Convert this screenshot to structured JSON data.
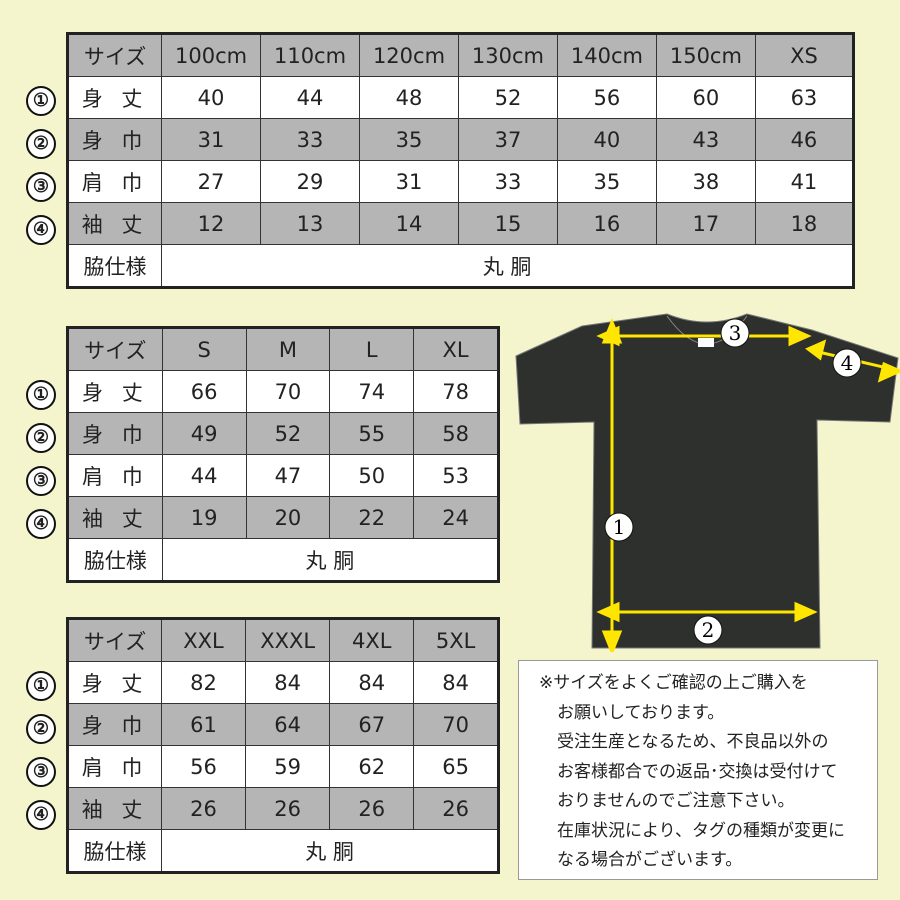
{
  "colors": {
    "background": "#f5f5cd",
    "header_gray": "#b5b5b5",
    "arrow": "#ffe600",
    "shirt": "#2e302e"
  },
  "markers": [
    "①",
    "②",
    "③",
    "④"
  ],
  "tables": [
    {
      "header": [
        "サイズ",
        "100cm",
        "110cm",
        "120cm",
        "130cm",
        "140cm",
        "150cm",
        "XS"
      ],
      "rows": [
        {
          "label": "身 丈",
          "values": [
            "40",
            "44",
            "48",
            "52",
            "56",
            "60",
            "63"
          ]
        },
        {
          "label": "身 巾",
          "values": [
            "31",
            "33",
            "35",
            "37",
            "40",
            "43",
            "46"
          ]
        },
        {
          "label": "肩 巾",
          "values": [
            "27",
            "29",
            "31",
            "33",
            "35",
            "38",
            "41"
          ]
        },
        {
          "label": "袖 丈",
          "values": [
            "12",
            "13",
            "14",
            "15",
            "16",
            "17",
            "18"
          ]
        }
      ],
      "side_label": "脇仕様",
      "side_value": "丸 胴"
    },
    {
      "header": [
        "サイズ",
        "S",
        "M",
        "L",
        "XL"
      ],
      "rows": [
        {
          "label": "身 丈",
          "values": [
            "66",
            "70",
            "74",
            "78"
          ]
        },
        {
          "label": "身 巾",
          "values": [
            "49",
            "52",
            "55",
            "58"
          ]
        },
        {
          "label": "肩 巾",
          "values": [
            "44",
            "47",
            "50",
            "53"
          ]
        },
        {
          "label": "袖 丈",
          "values": [
            "19",
            "20",
            "22",
            "24"
          ]
        }
      ],
      "side_label": "脇仕様",
      "side_value": "丸 胴"
    },
    {
      "header": [
        "サイズ",
        "XXL",
        "XXXL",
        "4XL",
        "5XL"
      ],
      "rows": [
        {
          "label": "身 丈",
          "values": [
            "82",
            "84",
            "84",
            "84"
          ]
        },
        {
          "label": "身 巾",
          "values": [
            "61",
            "64",
            "67",
            "70"
          ]
        },
        {
          "label": "肩 巾",
          "values": [
            "56",
            "59",
            "62",
            "65"
          ]
        },
        {
          "label": "袖 丈",
          "values": [
            "26",
            "26",
            "26",
            "26"
          ]
        }
      ],
      "side_label": "脇仕様",
      "side_value": "丸 胴"
    }
  ],
  "diagram": {
    "labels": [
      "1",
      "2",
      "3",
      "4"
    ]
  },
  "note": [
    "※サイズをよくご確認の上ご購入を",
    "お願いしております。",
    "受注生産となるため、不良品以外の",
    "お客様都合での返品･交換は受付けて",
    "おりませんのでご注意下さい。",
    "在庫状況により、タグの種類が変更に",
    "なる場合がございます。"
  ]
}
